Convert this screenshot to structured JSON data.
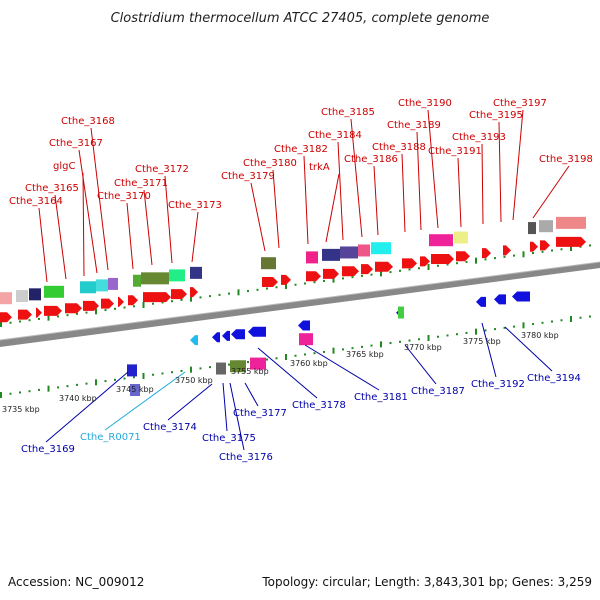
{
  "title": "Clostridium thermocellum ATCC 27405, complete genome",
  "accession": "Accession: NC_009012",
  "topology": "Topology: circular; Length: 3,843,301 bp; Genes: 3,259",
  "colors": {
    "top_label": "#cc0000",
    "bottom_label": "#0000aa",
    "rna_label": "#22aadd",
    "forward_gene": "#ee1111",
    "reverse_gene": "#1111dd",
    "ruler_tick": "#228822",
    "backbone": "#888888"
  },
  "top_labels": [
    {
      "text": "Cthe_3164"
    },
    {
      "text": "Cthe_3165"
    },
    {
      "text": "glgC"
    },
    {
      "text": "Cthe_3167"
    },
    {
      "text": "Cthe_3168"
    },
    {
      "text": "Cthe_3170"
    },
    {
      "text": "Cthe_3171"
    },
    {
      "text": "Cthe_3172"
    },
    {
      "text": "Cthe_3173"
    },
    {
      "text": "Cthe_3179"
    },
    {
      "text": "Cthe_3180"
    },
    {
      "text": "Cthe_3182"
    },
    {
      "text": "trkA"
    },
    {
      "text": "Cthe_3184"
    },
    {
      "text": "Cthe_3185"
    },
    {
      "text": "Cthe_3186"
    },
    {
      "text": "Cthe_3188"
    },
    {
      "text": "Cthe_3189"
    },
    {
      "text": "Cthe_3190"
    },
    {
      "text": "Cthe_3191"
    },
    {
      "text": "Cthe_3193"
    },
    {
      "text": "Cthe_3195"
    },
    {
      "text": "Cthe_3197"
    },
    {
      "text": "Cthe_3198"
    }
  ],
  "bottom_labels": [
    {
      "text": "Cthe_3169"
    },
    {
      "text": "Cthe_R0071"
    },
    {
      "text": "Cthe_3174"
    },
    {
      "text": "Cthe_3175"
    },
    {
      "text": "Cthe_3176"
    },
    {
      "text": "Cthe_3177"
    },
    {
      "text": "Cthe_3178"
    },
    {
      "text": "Cthe_3181"
    },
    {
      "text": "Cthe_3187"
    },
    {
      "text": "Cthe_3192"
    },
    {
      "text": "Cthe_3194"
    }
  ],
  "kbp_labels": [
    {
      "text": "3735 kbp"
    },
    {
      "text": "3740 kbp"
    },
    {
      "text": "3745 kbp"
    },
    {
      "text": "3750 kbp"
    },
    {
      "text": "3755 kbp"
    },
    {
      "text": "3760 kbp"
    },
    {
      "text": "3765 kbp"
    },
    {
      "text": "3770 kbp"
    },
    {
      "text": "3775 kbp"
    },
    {
      "text": "3780 kbp"
    }
  ]
}
